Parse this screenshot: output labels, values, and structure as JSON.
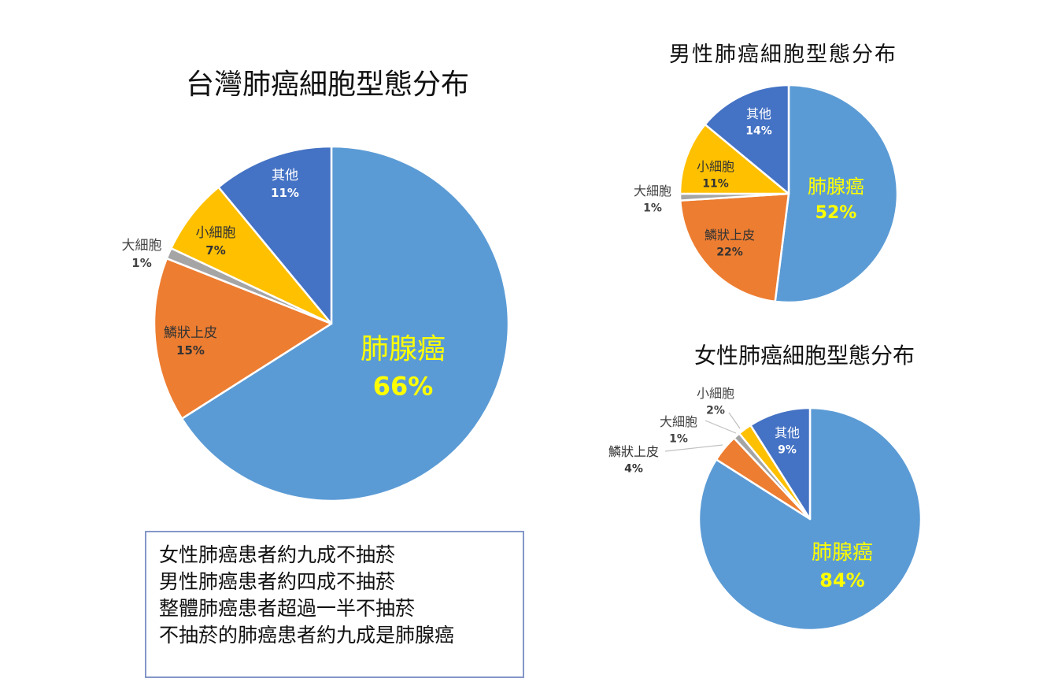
{
  "chart_data": [
    {
      "type": "pie",
      "title": "台灣肺癌細胞型態分布",
      "slices": [
        {
          "label": "肺腺癌",
          "value": 66,
          "display": "66%",
          "color": "#5b9bd5"
        },
        {
          "label": "鱗狀上皮",
          "value": 15,
          "display": "15%",
          "color": "#ed7d31"
        },
        {
          "label": "大細胞",
          "value": 1,
          "display": "1%",
          "color": "#a5a5a5"
        },
        {
          "label": "小細胞",
          "value": 7,
          "display": "7%",
          "color": "#ffc000"
        },
        {
          "label": "其他",
          "value": 11,
          "display": "11%",
          "color": "#4472c4"
        }
      ]
    },
    {
      "type": "pie",
      "title": "男性肺癌細胞型態分布",
      "slices": [
        {
          "label": "肺腺癌",
          "value": 52,
          "display": "52%",
          "color": "#5b9bd5"
        },
        {
          "label": "鱗狀上皮",
          "value": 22,
          "display": "22%",
          "color": "#ed7d31"
        },
        {
          "label": "大細胞",
          "value": 1,
          "display": "1%",
          "color": "#a5a5a5"
        },
        {
          "label": "小細胞",
          "value": 11,
          "display": "11%",
          "color": "#ffc000"
        },
        {
          "label": "其他",
          "value": 14,
          "display": "14%",
          "color": "#4472c4"
        }
      ]
    },
    {
      "type": "pie",
      "title": "女性肺癌細胞型態分布",
      "slices": [
        {
          "label": "肺腺癌",
          "value": 84,
          "display": "84%",
          "color": "#5b9bd5"
        },
        {
          "label": "鱗狀上皮",
          "value": 4,
          "display": "4%",
          "color": "#ed7d31"
        },
        {
          "label": "大細胞",
          "value": 1,
          "display": "1%",
          "color": "#a5a5a5"
        },
        {
          "label": "小細胞",
          "value": 2,
          "display": "2%",
          "color": "#ffc000"
        },
        {
          "label": "其他",
          "value": 9,
          "display": "9%",
          "color": "#4472c4"
        }
      ]
    }
  ],
  "notes": [
    "女性肺癌患者約九成不抽菸",
    "男性肺癌患者約四成不抽菸",
    "整體肺癌患者超過一半不抽菸",
    "不抽菸的肺癌患者約九成是肺腺癌"
  ]
}
